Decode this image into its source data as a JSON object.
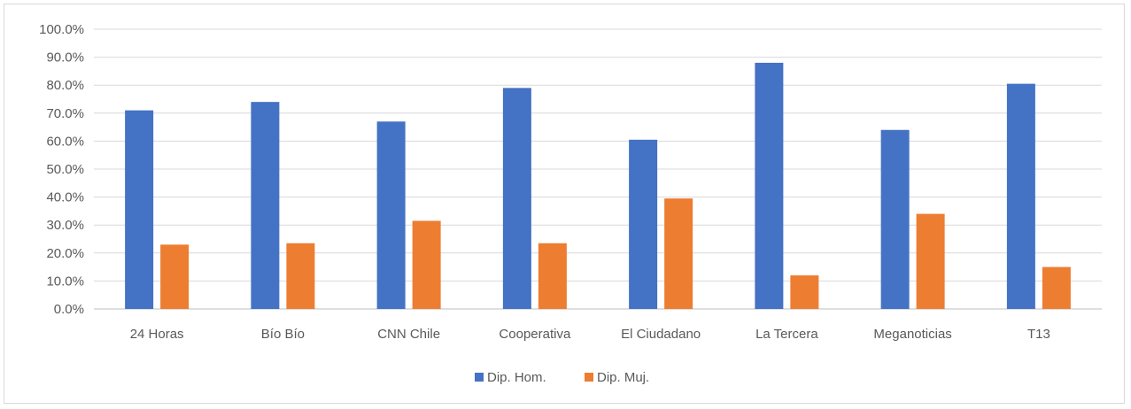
{
  "chart_data": {
    "type": "bar",
    "title": "",
    "xlabel": "",
    "ylabel": "",
    "ylim": [
      0,
      100
    ],
    "yticks": [
      "0.0%",
      "10.0%",
      "20.0%",
      "30.0%",
      "40.0%",
      "50.0%",
      "60.0%",
      "70.0%",
      "80.0%",
      "90.0%",
      "100.0%"
    ],
    "grid": true,
    "legend_position": "bottom",
    "categories": [
      "24 Horas",
      "Bío Bío",
      "CNN Chile",
      "Cooperativa",
      "El Ciudadano",
      "La Tercera",
      "Meganoticias",
      "T13"
    ],
    "series": [
      {
        "name": "Dip. Hom.",
        "color": "#4472c4",
        "values": [
          71.0,
          74.0,
          67.0,
          79.0,
          60.5,
          88.0,
          64.0,
          80.5
        ]
      },
      {
        "name": "Dip. Muj.",
        "color": "#ed7d31",
        "values": [
          23.0,
          23.5,
          31.5,
          23.5,
          39.5,
          12.0,
          34.0,
          15.0
        ]
      }
    ]
  }
}
